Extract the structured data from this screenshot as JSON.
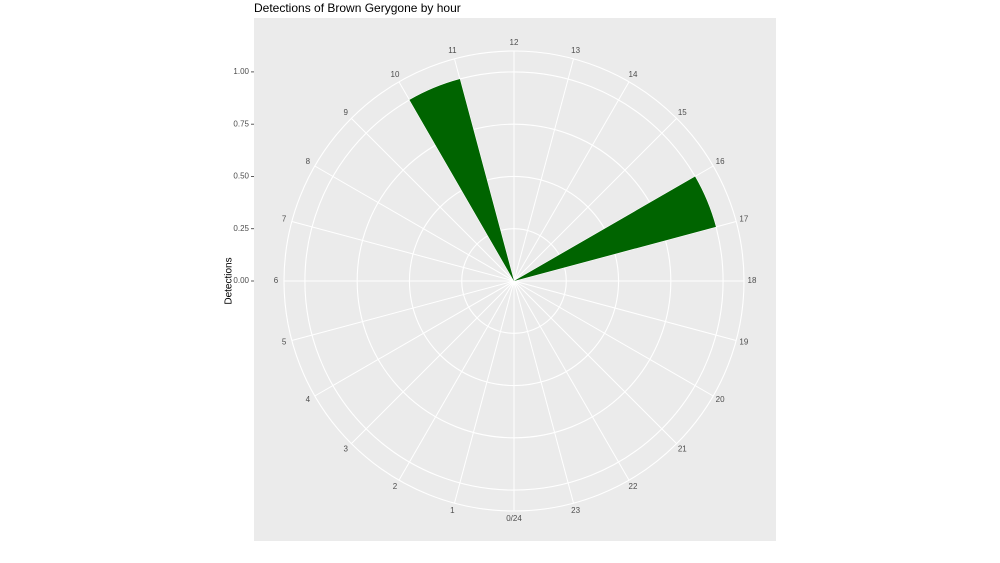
{
  "chart_data": {
    "type": "histogram",
    "title": "Detections of Brown Gerygone by hour",
    "y_label": "Detections",
    "coord": "polar",
    "color": "#006400",
    "grid": true,
    "bins": [
      0,
      1,
      2,
      3,
      4,
      5,
      6,
      7,
      8,
      9,
      10,
      11,
      12,
      13,
      14,
      15,
      16,
      17,
      18,
      19,
      20,
      21,
      22,
      23,
      24
    ],
    "counts": [
      0,
      0,
      0,
      0,
      0,
      0,
      0,
      0,
      0,
      0,
      1,
      0,
      0,
      0,
      0,
      0,
      1,
      0,
      0,
      0,
      0,
      0,
      0,
      0
    ],
    "xlim": [
      0,
      24
    ],
    "xticks": [
      {
        "value": 0,
        "label": "0/24"
      },
      1,
      2,
      3,
      4,
      5,
      6,
      7,
      8,
      9,
      10,
      11,
      12,
      13,
      14,
      15,
      16,
      17,
      18,
      19,
      20,
      21,
      22,
      23
    ],
    "ylim": [
      0,
      1.1
    ],
    "yticks": [
      {
        "value": 0,
        "label": "0.00"
      },
      {
        "value": 0.25,
        "label": "0.25"
      },
      {
        "value": 0.5,
        "label": "0.50"
      },
      {
        "value": 0.75,
        "label": "0.75"
      },
      {
        "value": 1,
        "label": "1.00"
      }
    ]
  }
}
